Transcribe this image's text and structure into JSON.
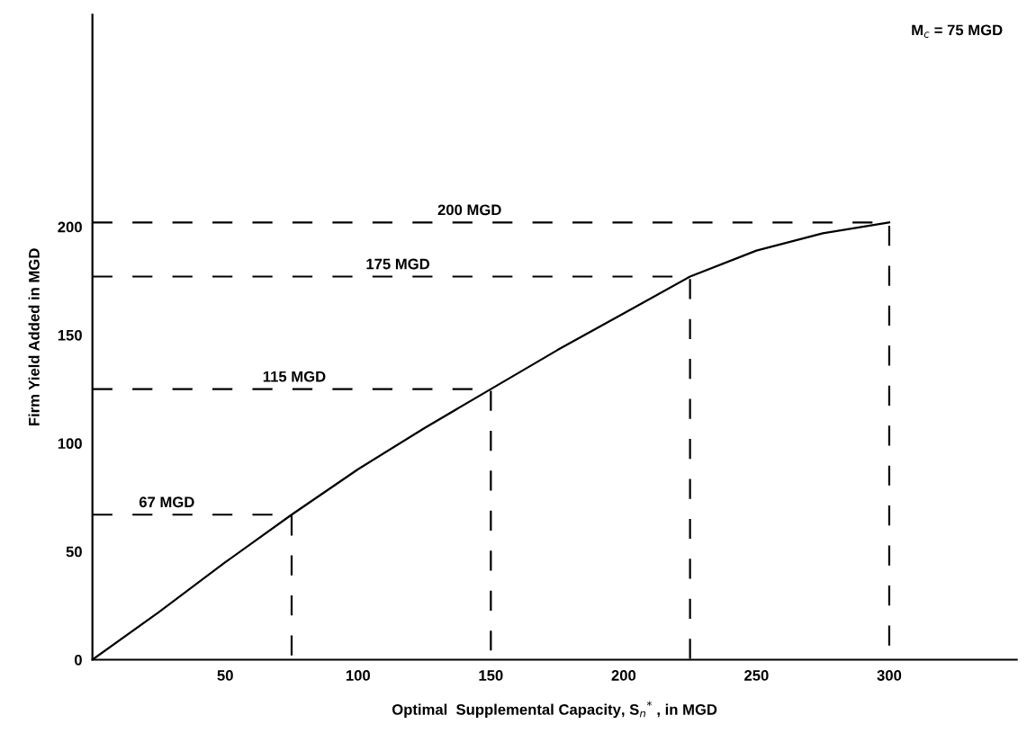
{
  "chart_data": {
    "type": "line",
    "xlabel": "Optimal  Supplemental Capacity, S$_{n}$$^{*}$ , in MGD",
    "ylabel": "Firm Yield Added in MGD",
    "xlim": [
      0,
      348
    ],
    "ylim": [
      0,
      298
    ],
    "xticks": [
      50,
      100,
      150,
      200,
      250,
      300
    ],
    "yticks": [
      0,
      50,
      100,
      150,
      200
    ],
    "grid": false,
    "legend": false,
    "marker": "none",
    "series": [
      {
        "color": "#000000",
        "line_style": "solid",
        "x": [
          0,
          25,
          50,
          75,
          100,
          125,
          150,
          175,
          200,
          225,
          250,
          275,
          300
        ],
        "values": [
          0,
          22,
          45,
          67,
          88,
          107,
          125,
          143,
          160,
          177,
          189,
          197,
          202
        ]
      },
      {
        "color": "#000000",
        "line_style": "dashed",
        "x": [
          0,
          75,
          75
        ],
        "values": [
          67,
          67,
          0
        ]
      },
      {
        "color": "#000000",
        "line_style": "dashed",
        "x": [
          0,
          150,
          150
        ],
        "values": [
          125,
          125,
          0
        ]
      },
      {
        "color": "#000000",
        "line_style": "dashed",
        "x": [
          0,
          225,
          225
        ],
        "values": [
          177,
          177,
          0
        ]
      },
      {
        "color": "#000000",
        "line_style": "dashed",
        "x": [
          0,
          300,
          300
        ],
        "values": [
          202,
          202,
          0
        ]
      }
    ],
    "annotations": [
      {
        "text": "67 MGD",
        "x": 28,
        "y": 69
      },
      {
        "text": "115 MGD",
        "x": 76,
        "y": 127
      },
      {
        "text": "175 MGD",
        "x": 115,
        "y": 179
      },
      {
        "text": "200 MGD",
        "x": 142,
        "y": 204
      },
      "M$_{c}$ = 75 MGD"
    ]
  }
}
